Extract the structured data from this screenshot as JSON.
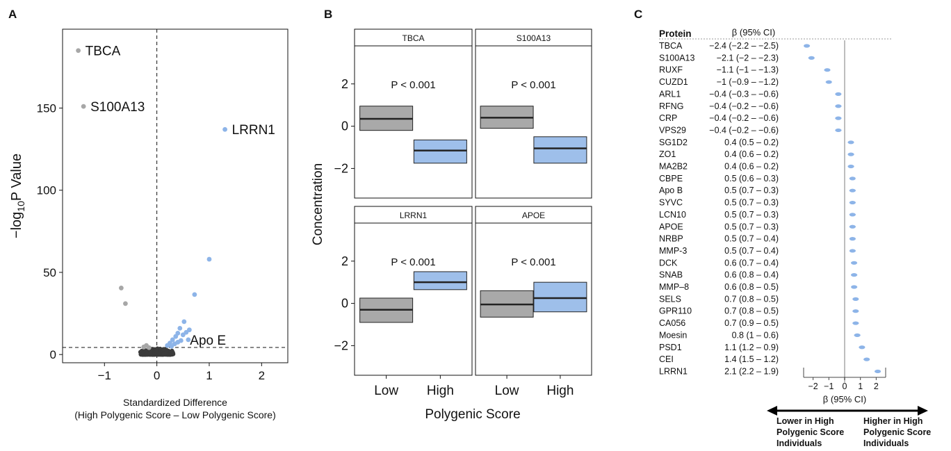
{
  "colors": {
    "blue": "#8db4e8",
    "gray": "#a7a7a7",
    "dark": "#3b3b3b",
    "box_gray": "#a9a9a9",
    "box_blue": "#9ebfea"
  },
  "panel_labels": {
    "a": "A",
    "b": "B",
    "c": "C"
  },
  "chart_data": [
    {
      "type": "scatter",
      "xlabel_line1": "Standardized Difference",
      "xlabel_line2": "(High Polygenic Score – Low Polygenic Score)",
      "ylabel_prefix": "−log",
      "ylabel_sub": "10",
      "ylabel_suffix": "P Value",
      "xlim": [
        -1.8,
        2.5
      ],
      "ylim": [
        -5,
        198
      ],
      "x_ticks": [
        {
          "v": -1,
          "label": "−1"
        },
        {
          "v": 0,
          "label": "0"
        },
        {
          "v": 1,
          "label": "1"
        },
        {
          "v": 2,
          "label": "2"
        }
      ],
      "y_ticks": [
        {
          "v": 0,
          "label": "0"
        },
        {
          "v": 50,
          "label": "50"
        },
        {
          "v": 100,
          "label": "100"
        },
        {
          "v": 150,
          "label": "150"
        }
      ],
      "vline": 0,
      "hline": 4.3,
      "points": [
        {
          "x": -1.5,
          "y": 185,
          "c": "gray"
        },
        {
          "x": -1.4,
          "y": 151,
          "c": "gray"
        },
        {
          "x": -0.68,
          "y": 40.5,
          "c": "gray"
        },
        {
          "x": -0.6,
          "y": 31,
          "c": "gray"
        },
        {
          "x": -0.2,
          "y": 5.5,
          "c": "gray"
        },
        {
          "x": -0.15,
          "y": 4.2,
          "c": "gray"
        },
        {
          "x": -0.25,
          "y": 4.6,
          "c": "gray"
        },
        {
          "x": 1.3,
          "y": 137,
          "c": "blue"
        },
        {
          "x": 1.0,
          "y": 58,
          "c": "blue"
        },
        {
          "x": 0.72,
          "y": 36.5,
          "c": "blue"
        },
        {
          "x": 0.52,
          "y": 20,
          "c": "blue"
        },
        {
          "x": 0.44,
          "y": 16,
          "c": "blue"
        },
        {
          "x": 0.4,
          "y": 13,
          "c": "blue"
        },
        {
          "x": 0.36,
          "y": 11,
          "c": "blue"
        },
        {
          "x": 0.5,
          "y": 12,
          "c": "blue"
        },
        {
          "x": 0.56,
          "y": 13.5,
          "c": "blue"
        },
        {
          "x": 0.3,
          "y": 9,
          "c": "blue"
        },
        {
          "x": 0.46,
          "y": 8.5,
          "c": "blue"
        },
        {
          "x": 0.25,
          "y": 7,
          "c": "blue"
        },
        {
          "x": 0.34,
          "y": 6.5,
          "c": "blue"
        },
        {
          "x": 0.2,
          "y": 5.5,
          "c": "blue"
        },
        {
          "x": 0.28,
          "y": 5,
          "c": "blue"
        },
        {
          "x": 0.4,
          "y": 7.5,
          "c": "blue"
        },
        {
          "x": 0.6,
          "y": 9,
          "c": "blue"
        },
        {
          "x": 0.62,
          "y": 15,
          "c": "blue"
        }
      ],
      "labels": [
        {
          "text": "TBCA",
          "x": -1.5,
          "y": 185,
          "side": "right"
        },
        {
          "text": "S100A13",
          "x": -1.4,
          "y": 151,
          "side": "right"
        },
        {
          "text": "LRRN1",
          "x": 1.3,
          "y": 137,
          "side": "right"
        },
        {
          "text": "Apo E",
          "x": 0.5,
          "y": 9,
          "side": "right"
        }
      ]
    },
    {
      "type": "box",
      "ylabel": "Concentration",
      "xlabel": "Polygenic Score",
      "categories": [
        "Low",
        "High"
      ],
      "ylim": [
        -3.4,
        3.8
      ],
      "y_ticks": [
        {
          "v": -2,
          "label": "−2"
        },
        {
          "v": 0,
          "label": "0"
        },
        {
          "v": 2,
          "label": "2"
        }
      ],
      "facets": [
        {
          "title": "TBCA",
          "p": "P < 0.001",
          "boxes": [
            {
              "q1": -0.2,
              "med": 0.35,
              "q3": 0.95
            },
            {
              "q1": -1.75,
              "med": -1.15,
              "q3": -0.65
            }
          ]
        },
        {
          "title": "S100A13",
          "p": "P < 0.001",
          "boxes": [
            {
              "q1": -0.1,
              "med": 0.4,
              "q3": 0.95
            },
            {
              "q1": -1.75,
              "med": -1.05,
              "q3": -0.5
            }
          ]
        },
        {
          "title": "LRRN1",
          "p": "P < 0.001",
          "boxes": [
            {
              "q1": -0.9,
              "med": -0.3,
              "q3": 0.25
            },
            {
              "q1": 0.65,
              "med": 1.0,
              "q3": 1.5
            }
          ]
        },
        {
          "title": "APOE",
          "p": "P < 0.001",
          "boxes": [
            {
              "q1": -0.65,
              "med": -0.05,
              "q3": 0.6
            },
            {
              "q1": -0.4,
              "med": 0.25,
              "q3": 1.0
            }
          ]
        }
      ]
    },
    {
      "type": "forest",
      "col_protein": "Protein",
      "col_beta": "β (95% CI)",
      "xlabel": "β (95% CI)",
      "xlim": [
        -2.6,
        2.6
      ],
      "x_ticks": [
        {
          "v": -2,
          "label": "−2"
        },
        {
          "v": -1,
          "label": "−1"
        },
        {
          "v": 0,
          "label": "0"
        },
        {
          "v": 1,
          "label": "1"
        },
        {
          "v": 2,
          "label": "2"
        }
      ],
      "arrow_left": [
        "Lower in High",
        "Polygenic Score",
        "Individuals"
      ],
      "arrow_right": [
        "Higher in High",
        "Polygenic Score",
        "Individuals"
      ],
      "rows": [
        {
          "protein": "TBCA",
          "ci": "−2.4 (−2.2 – −2.5)",
          "beta": -2.4,
          "lo": -2.5,
          "hi": -2.2
        },
        {
          "protein": "S100A13",
          "ci": "−2.1 (−2 – −2.3)",
          "beta": -2.1,
          "lo": -2.3,
          "hi": -2.0
        },
        {
          "protein": "RUXF",
          "ci": "−1.1 (−1 – −1.3)",
          "beta": -1.1,
          "lo": -1.3,
          "hi": -1.0
        },
        {
          "protein": "CUZD1",
          "ci": "−1 (−0.9 – −1.2)",
          "beta": -1.0,
          "lo": -1.2,
          "hi": -0.9
        },
        {
          "protein": "ARL1",
          "ci": "−0.4 (−0.3 – −0.6)",
          "beta": -0.4,
          "lo": -0.6,
          "hi": -0.3
        },
        {
          "protein": "RFNG",
          "ci": "−0.4 (−0.2 – −0.6)",
          "beta": -0.4,
          "lo": -0.6,
          "hi": -0.2
        },
        {
          "protein": "CRP",
          "ci": "−0.4 (−0.2 – −0.6)",
          "beta": -0.4,
          "lo": -0.6,
          "hi": -0.2
        },
        {
          "protein": "VPS29",
          "ci": "−0.4 (−0.2 – −0.6)",
          "beta": -0.4,
          "lo": -0.6,
          "hi": -0.2
        },
        {
          "protein": "SG1D2",
          "ci": "0.4 (0.5 – 0.2)",
          "beta": 0.4,
          "lo": 0.2,
          "hi": 0.5
        },
        {
          "protein": "ZO1",
          "ci": "0.4 (0.6 – 0.2)",
          "beta": 0.4,
          "lo": 0.2,
          "hi": 0.6
        },
        {
          "protein": "MA2B2",
          "ci": "0.4 (0.6 – 0.2)",
          "beta": 0.4,
          "lo": 0.2,
          "hi": 0.6
        },
        {
          "protein": "CBPE",
          "ci": "0.5 (0.6 – 0.3)",
          "beta": 0.5,
          "lo": 0.3,
          "hi": 0.6
        },
        {
          "protein": "Apo B",
          "ci": "0.5 (0.7 – 0.3)",
          "beta": 0.5,
          "lo": 0.3,
          "hi": 0.7
        },
        {
          "protein": "SYVC",
          "ci": "0.5 (0.7 – 0.3)",
          "beta": 0.5,
          "lo": 0.3,
          "hi": 0.7
        },
        {
          "protein": "LCN10",
          "ci": "0.5 (0.7 – 0.3)",
          "beta": 0.5,
          "lo": 0.3,
          "hi": 0.7
        },
        {
          "protein": "APOE",
          "ci": "0.5 (0.7 – 0.3)",
          "beta": 0.5,
          "lo": 0.3,
          "hi": 0.7
        },
        {
          "protein": "NRBP",
          "ci": "0.5 (0.7 – 0.4)",
          "beta": 0.5,
          "lo": 0.4,
          "hi": 0.7
        },
        {
          "protein": "MMP-3",
          "ci": "0.5 (0.7 – 0.4)",
          "beta": 0.5,
          "lo": 0.4,
          "hi": 0.7
        },
        {
          "protein": "DCK",
          "ci": "0.6 (0.7 – 0.4)",
          "beta": 0.6,
          "lo": 0.4,
          "hi": 0.7
        },
        {
          "protein": "SNAB",
          "ci": "0.6 (0.8 – 0.4)",
          "beta": 0.6,
          "lo": 0.4,
          "hi": 0.8
        },
        {
          "protein": "MMP–8",
          "ci": "0.6 (0.8 – 0.5)",
          "beta": 0.6,
          "lo": 0.5,
          "hi": 0.8
        },
        {
          "protein": "SELS",
          "ci": "0.7 (0.8 – 0.5)",
          "beta": 0.7,
          "lo": 0.5,
          "hi": 0.8
        },
        {
          "protein": "GPR110",
          "ci": "0.7 (0.8 – 0.5)",
          "beta": 0.7,
          "lo": 0.5,
          "hi": 0.8
        },
        {
          "protein": "CA056",
          "ci": "0.7 (0.9 – 0.5)",
          "beta": 0.7,
          "lo": 0.5,
          "hi": 0.9
        },
        {
          "protein": "Moesin",
          "ci": "0.8 (1 – 0.6)",
          "beta": 0.8,
          "lo": 0.6,
          "hi": 1.0
        },
        {
          "protein": "PSD1",
          "ci": "1.1 (1.2 – 0.9)",
          "beta": 1.1,
          "lo": 0.9,
          "hi": 1.2
        },
        {
          "protein": "CEI",
          "ci": "1.4 (1.5 – 1.2)",
          "beta": 1.4,
          "lo": 1.2,
          "hi": 1.5
        },
        {
          "protein": "LRRN1",
          "ci": "2.1 (2.2 – 1.9)",
          "beta": 2.1,
          "lo": 1.9,
          "hi": 2.2
        }
      ]
    }
  ]
}
